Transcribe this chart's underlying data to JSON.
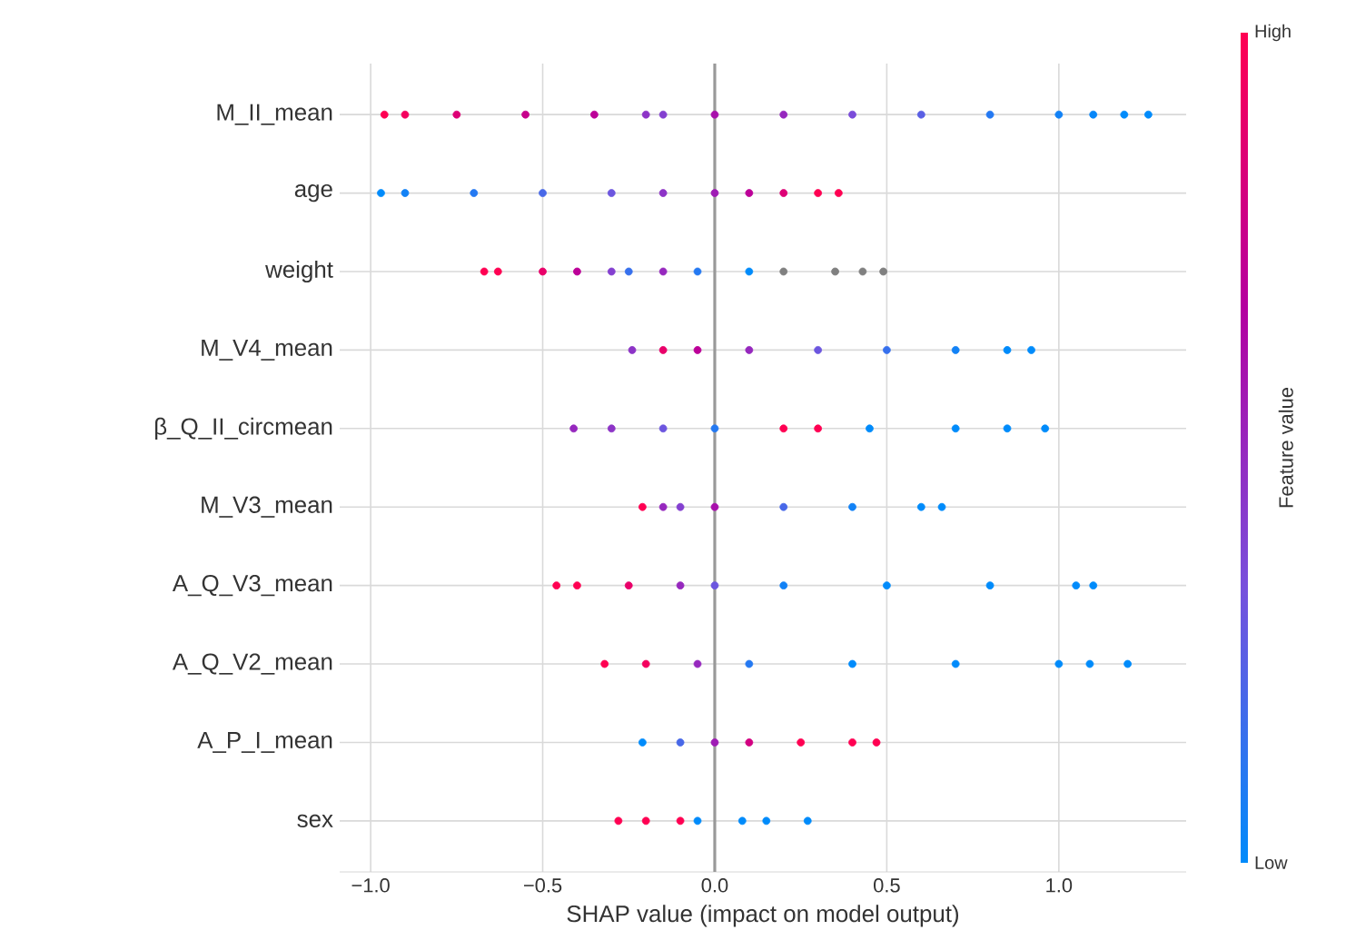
{
  "chart_data": {
    "type": "scatter",
    "orientation": "horizontal",
    "xlabel": "SHAP value (impact on model output)",
    "clabel": "Feature value",
    "annotations": [
      "High",
      "Low"
    ],
    "categories": [
      "M_II_mean",
      "age",
      "weight",
      "M_V4_mean",
      "β_Q_II_circmean",
      "M_V3_mean",
      "A_Q_V3_mean",
      "A_Q_V2_mean",
      "A_P_I_mean",
      "sex"
    ],
    "series": [
      {
        "values": [
          -0.96,
          -0.97,
          -0.67,
          -0.24,
          -0.41,
          -0.21,
          -0.46,
          -0.32,
          -0.21,
          -0.28
        ],
        "colors": [
          "#ff0052",
          "#008bfb",
          "#ff0052",
          "#8d34c7",
          "#9628be",
          "#ff0052",
          "#ff0052",
          "#ff0052",
          "#008bfb",
          "#ff0052"
        ]
      },
      {
        "values": [
          -0.9,
          -0.9,
          -0.63,
          -0.15,
          -0.3,
          -0.15,
          -0.4,
          -0.2,
          -0.1,
          -0.2
        ],
        "colors": [
          "#f4005e",
          "#1282f6",
          "#ff0052",
          "#e90069",
          "#8d34c7",
          "#9628be",
          "#ff0052",
          "#f4005e",
          "#4868e8",
          "#ff0052"
        ]
      },
      {
        "values": [
          -0.75,
          -0.7,
          -0.5,
          -0.05,
          -0.15,
          -0.1,
          -0.25,
          -0.05,
          0,
          -0.1
        ],
        "colors": [
          "#dd0075",
          "#2479f2",
          "#e90069",
          "#bc0098",
          "#6c56df",
          "#8440d0",
          "#e90069",
          "#9628be",
          "#9f1cb5",
          "#ff0052"
        ]
      },
      {
        "values": [
          -0.55,
          -0.5,
          -0.4,
          0.1,
          0,
          0,
          -0.1,
          0.1,
          0.1,
          -0.05
        ],
        "colors": [
          "#c7008c",
          "#4868e8",
          "#bc0098",
          "#9628be",
          "#2479f2",
          "#a810ac",
          "#9628be",
          "#2479f2",
          "#d20081",
          "#008bfb"
        ]
      },
      {
        "values": [
          -0.35,
          -0.3,
          -0.3,
          0.3,
          0.2,
          0.2,
          0,
          0.4,
          0.25,
          0.08
        ],
        "colors": [
          "#bc0098",
          "#6c56df",
          "#8440d0",
          "#6c56df",
          "#ff0052",
          "#4868e8",
          "#6c56df",
          "#008bfb",
          "#ff0052",
          "#008bfb"
        ]
      },
      {
        "values": [
          -0.2,
          -0.15,
          -0.25,
          0.5,
          0.3,
          0.4,
          0.2,
          0.7,
          0.4,
          0.15
        ],
        "colors": [
          "#8d34c7",
          "#8d34c7",
          "#3670ed",
          "#3670ed",
          "#ff0052",
          "#1282f6",
          "#1282f6",
          "#008bfb",
          "#ff0052",
          "#008bfb"
        ]
      },
      {
        "values": [
          -0.15,
          0,
          -0.15,
          0.7,
          0.45,
          0.6,
          0.5,
          1.0,
          0.47,
          0.27
        ],
        "colors": [
          "#8440d0",
          "#9f1cb5",
          "#9628be",
          "#1282f6",
          "#008bfb",
          "#008bfb",
          "#008bfb",
          "#008bfb",
          "#ff0052",
          "#008bfb"
        ]
      },
      {
        "values": [
          0,
          0.1,
          -0.05,
          0.85,
          0.7,
          0.66,
          0.8,
          1.09,
          null,
          null
        ],
        "colors": [
          "#a810ac",
          "#bc0098",
          "#2479f2",
          "#008bfb",
          "#008bfb",
          "#008bfb",
          "#008bfb",
          "#008bfb",
          null,
          null
        ]
      },
      {
        "values": [
          0.2,
          0.2,
          0.1,
          0.92,
          0.85,
          null,
          1.05,
          1.2,
          null,
          null
        ],
        "colors": [
          "#9628be",
          "#dd0075",
          "#008bfb",
          "#008bfb",
          "#008bfb",
          null,
          "#008bfb",
          "#008bfb",
          null,
          null
        ]
      },
      {
        "values": [
          0.4,
          0.3,
          0.2,
          null,
          0.96,
          null,
          1.1,
          null,
          null,
          null
        ],
        "colors": [
          "#7b4cd9",
          "#ff0052",
          "#808080",
          null,
          "#008bfb",
          null,
          "#008bfb",
          null,
          null,
          null
        ]
      },
      {
        "values": [
          0.6,
          0.36,
          0.35,
          null,
          null,
          null,
          null,
          null,
          null,
          null
        ],
        "colors": [
          "#5a5fe4",
          "#ff0052",
          "#808080",
          null,
          null,
          null,
          null,
          null,
          null,
          null
        ]
      },
      {
        "values": [
          0.8,
          null,
          0.43,
          null,
          null,
          null,
          null,
          null,
          null,
          null
        ],
        "colors": [
          "#2479f2",
          null,
          "#808080",
          null,
          null,
          null,
          null,
          null,
          null,
          null
        ]
      },
      {
        "values": [
          1.0,
          null,
          0.49,
          null,
          null,
          null,
          null,
          null,
          null,
          null
        ],
        "colors": [
          "#1282f6",
          null,
          "#808080",
          null,
          null,
          null,
          null,
          null,
          null,
          null
        ]
      },
      {
        "values": [
          1.1,
          null,
          null,
          null,
          null,
          null,
          null,
          null,
          null,
          null
        ],
        "colors": [
          "#0787f9",
          null,
          null,
          null,
          null,
          null,
          null,
          null,
          null,
          null
        ]
      },
      {
        "values": [
          1.19,
          null,
          null,
          null,
          null,
          null,
          null,
          null,
          null,
          null
        ],
        "colors": [
          "#008bfb",
          null,
          null,
          null,
          null,
          null,
          null,
          null,
          null,
          null
        ]
      },
      {
        "values": [
          1.26,
          null,
          null,
          null,
          null,
          null,
          null,
          null,
          null,
          null
        ],
        "colors": [
          "#008bfb",
          null,
          null,
          null,
          null,
          null,
          null,
          null,
          null,
          null
        ]
      }
    ],
    "xlim": [
      -1.09,
      1.37
    ],
    "xticks": [
      {
        "value": -1,
        "label": "−1.0"
      },
      {
        "value": -0.5,
        "label": "−0.5"
      },
      {
        "value": 0,
        "label": "0.0"
      },
      {
        "value": 0.5,
        "label": "0.5"
      },
      {
        "value": 1,
        "label": "1.0"
      }
    ],
    "ref_lines": [
      {
        "axis": "x",
        "value": 0,
        "color": "#999999"
      }
    ],
    "grid": true,
    "marker": "circle"
  }
}
